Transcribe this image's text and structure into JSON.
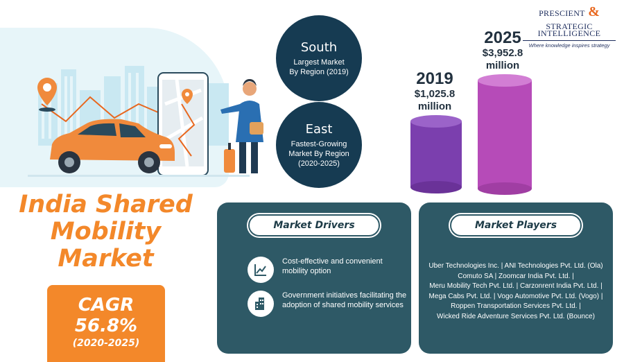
{
  "logo": {
    "word1": "PRESCIENT",
    "ampersand": "&",
    "word2": "STRATEGIC",
    "word3": "INTELLIGENCE",
    "tagline": "Where knowledge inspires strategy"
  },
  "regions": {
    "south": {
      "name": "South",
      "line1": "Largest Market",
      "line2": "By Region (2019)"
    },
    "east": {
      "name": "East",
      "line1": "Fastest-Growing",
      "line2": "Market By Region",
      "line3": "(2020-2025)"
    }
  },
  "market_size": {
    "y2019": {
      "year": "2019",
      "value": "$1,025.8",
      "unit": "million",
      "number": 1025.8
    },
    "y2025": {
      "year": "2025",
      "value": "$3,952.8",
      "unit": "million",
      "number": 3952.8
    }
  },
  "title": {
    "line1": "India Shared",
    "line2": "Mobility",
    "line3": "Market"
  },
  "cagr": {
    "label": "CAGR",
    "value": "56.8%",
    "period": "(2020-2025)"
  },
  "drivers": {
    "heading": "Market Drivers",
    "items": [
      {
        "text": "Cost-effective and convenient mobility option",
        "icon": "line-chart-icon"
      },
      {
        "text": "Government initiatives facilitating the adoption of shared mobility services",
        "icon": "building-icon"
      }
    ]
  },
  "players": {
    "heading": "Market Players",
    "lines": [
      "Uber Technologies Inc. | ANI Technologies Pvt. Ltd. (Ola)",
      "Comuto SA | Zoomcar India Pvt. Ltd. |",
      "Meru Mobility Tech Pvt. Ltd. | Carzonrent India Pvt. Ltd. |",
      "Mega Cabs Pvt. Ltd. | Vogo Automotive Pvt. Ltd. (Vogo) |",
      "Roppen Transportation Services Pvt. Ltd. |",
      "Wicked Ride Adventure Services Pvt. Ltd. (Bounce)"
    ]
  },
  "colors": {
    "orange": "#f3882a",
    "navy": "#163b52",
    "teal_panel": "#2e5966",
    "purple_2019": "#7b3fae",
    "magenta_2025": "#b64bb8"
  }
}
